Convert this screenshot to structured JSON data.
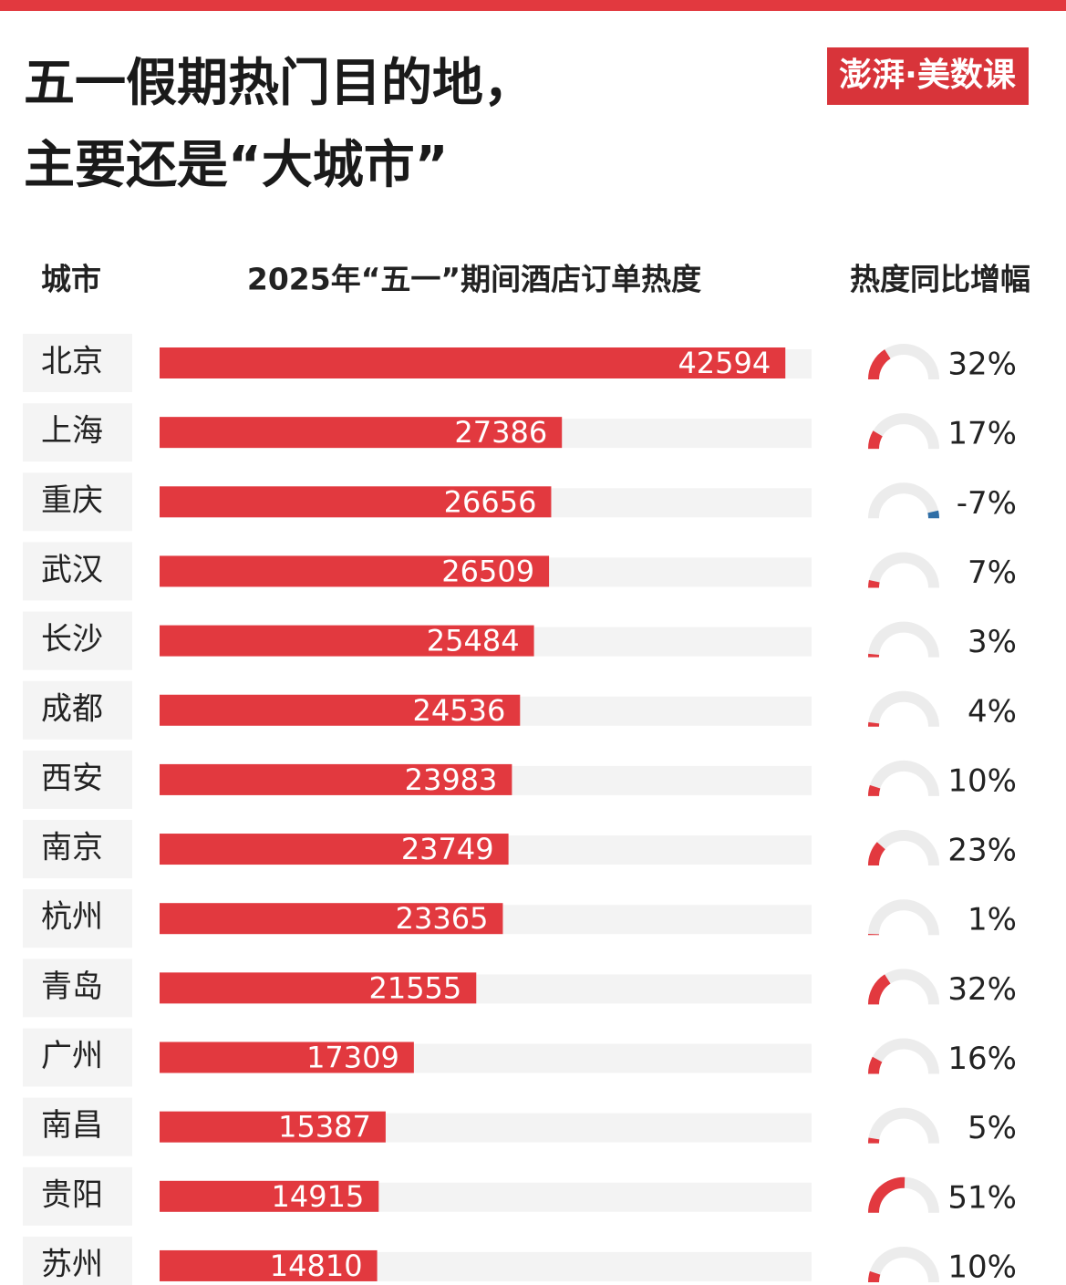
{
  "chart_data": {
    "type": "bar",
    "title_lines": [
      "五一假期热门目的地，",
      "主要还是“大城市”"
    ],
    "source_logo": "澎湃·美数课",
    "category_label": "城市",
    "categories": [
      "北京",
      "上海",
      "重庆",
      "武汉",
      "长沙",
      "成都",
      "西安",
      "南京",
      "杭州",
      "青岛",
      "广州",
      "南昌",
      "贵阳",
      "苏州"
    ],
    "xlim": [
      0,
      45000
    ],
    "series": [
      {
        "name": "2025年“五一”期间酒店订单热度",
        "color": "#e2393f",
        "values": [
          42594,
          27386,
          26656,
          26509,
          25484,
          24536,
          23983,
          23749,
          23365,
          21555,
          17309,
          15387,
          14915,
          14810
        ]
      },
      {
        "name": "热度同比增幅",
        "type": "gauge",
        "color": "#e2393f",
        "negative_color": "#2f6ea6",
        "glim": [
          0,
          100
        ],
        "values": [
          32,
          17,
          -7,
          7,
          3,
          4,
          10,
          23,
          1,
          32,
          16,
          5,
          51,
          10
        ],
        "value_labels": [
          "32%",
          "17%",
          "-7%",
          "7%",
          "3%",
          "4%",
          "10%",
          "23%",
          "1%",
          "32%",
          "16%",
          "5%",
          "51%",
          "10%"
        ]
      }
    ]
  }
}
